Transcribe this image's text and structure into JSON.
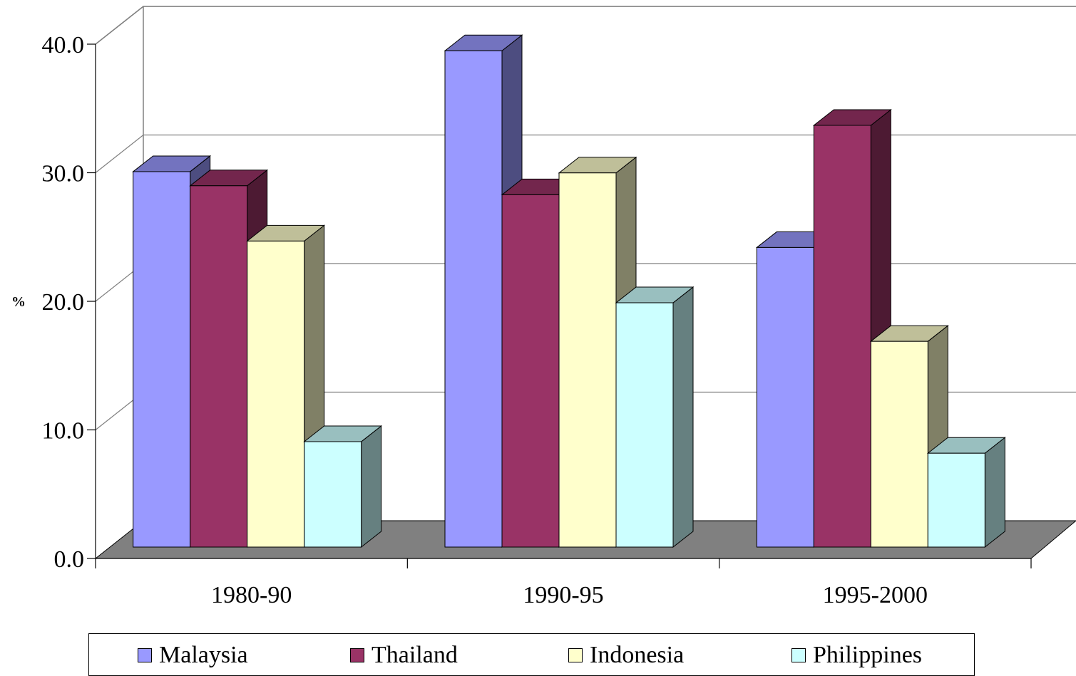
{
  "chart_data": {
    "type": "bar",
    "style": "3d-clustered-column",
    "ylabel": "%",
    "ylim": [
      0,
      40
    ],
    "yticks": [
      "0.0",
      "10.0",
      "20.0",
      "30.0",
      "40.0"
    ],
    "grid": true,
    "legend_position": "bottom",
    "categories": [
      "1980-90",
      "1990-95",
      "1995-2000"
    ],
    "series": [
      {
        "name": "Malaysia",
        "color": "#9999ff",
        "values": [
          29.2,
          38.6,
          23.3
        ]
      },
      {
        "name": "Thailand",
        "color": "#993366",
        "values": [
          28.1,
          27.4,
          32.8
        ]
      },
      {
        "name": "Indonesia",
        "color": "#ffffcc",
        "values": [
          23.8,
          29.1,
          16.0
        ]
      },
      {
        "name": "Philippines",
        "color": "#ccffff",
        "values": [
          8.2,
          19.0,
          7.3
        ]
      }
    ]
  }
}
